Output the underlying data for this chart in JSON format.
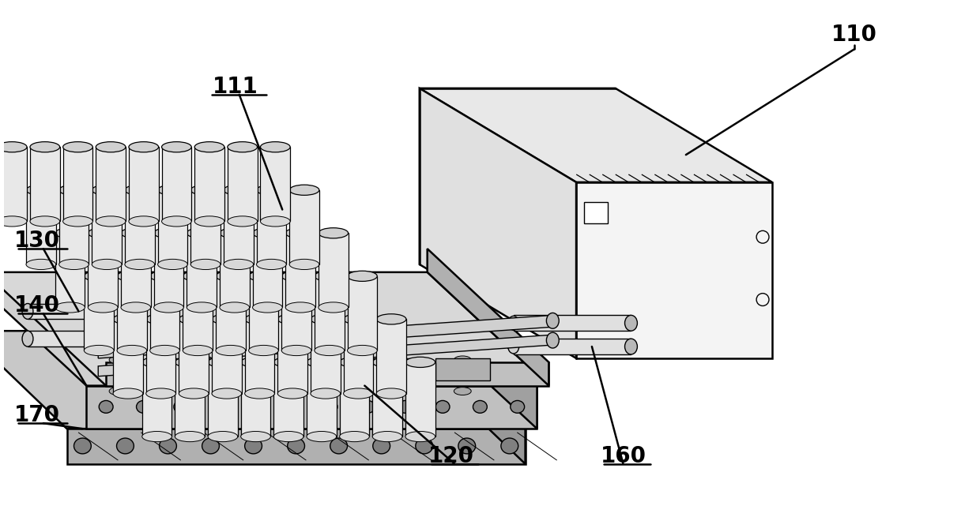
{
  "bg_color": "#ffffff",
  "lc": "#000000",
  "lw": 1.8,
  "lw_thin": 1.0,
  "fc_white": "#ffffff",
  "fc_light": "#f0f0f0",
  "fc_mid": "#d8d8d8",
  "fc_dark": "#b8b8b8",
  "label_fontsize": 20,
  "label_fontweight": "bold"
}
